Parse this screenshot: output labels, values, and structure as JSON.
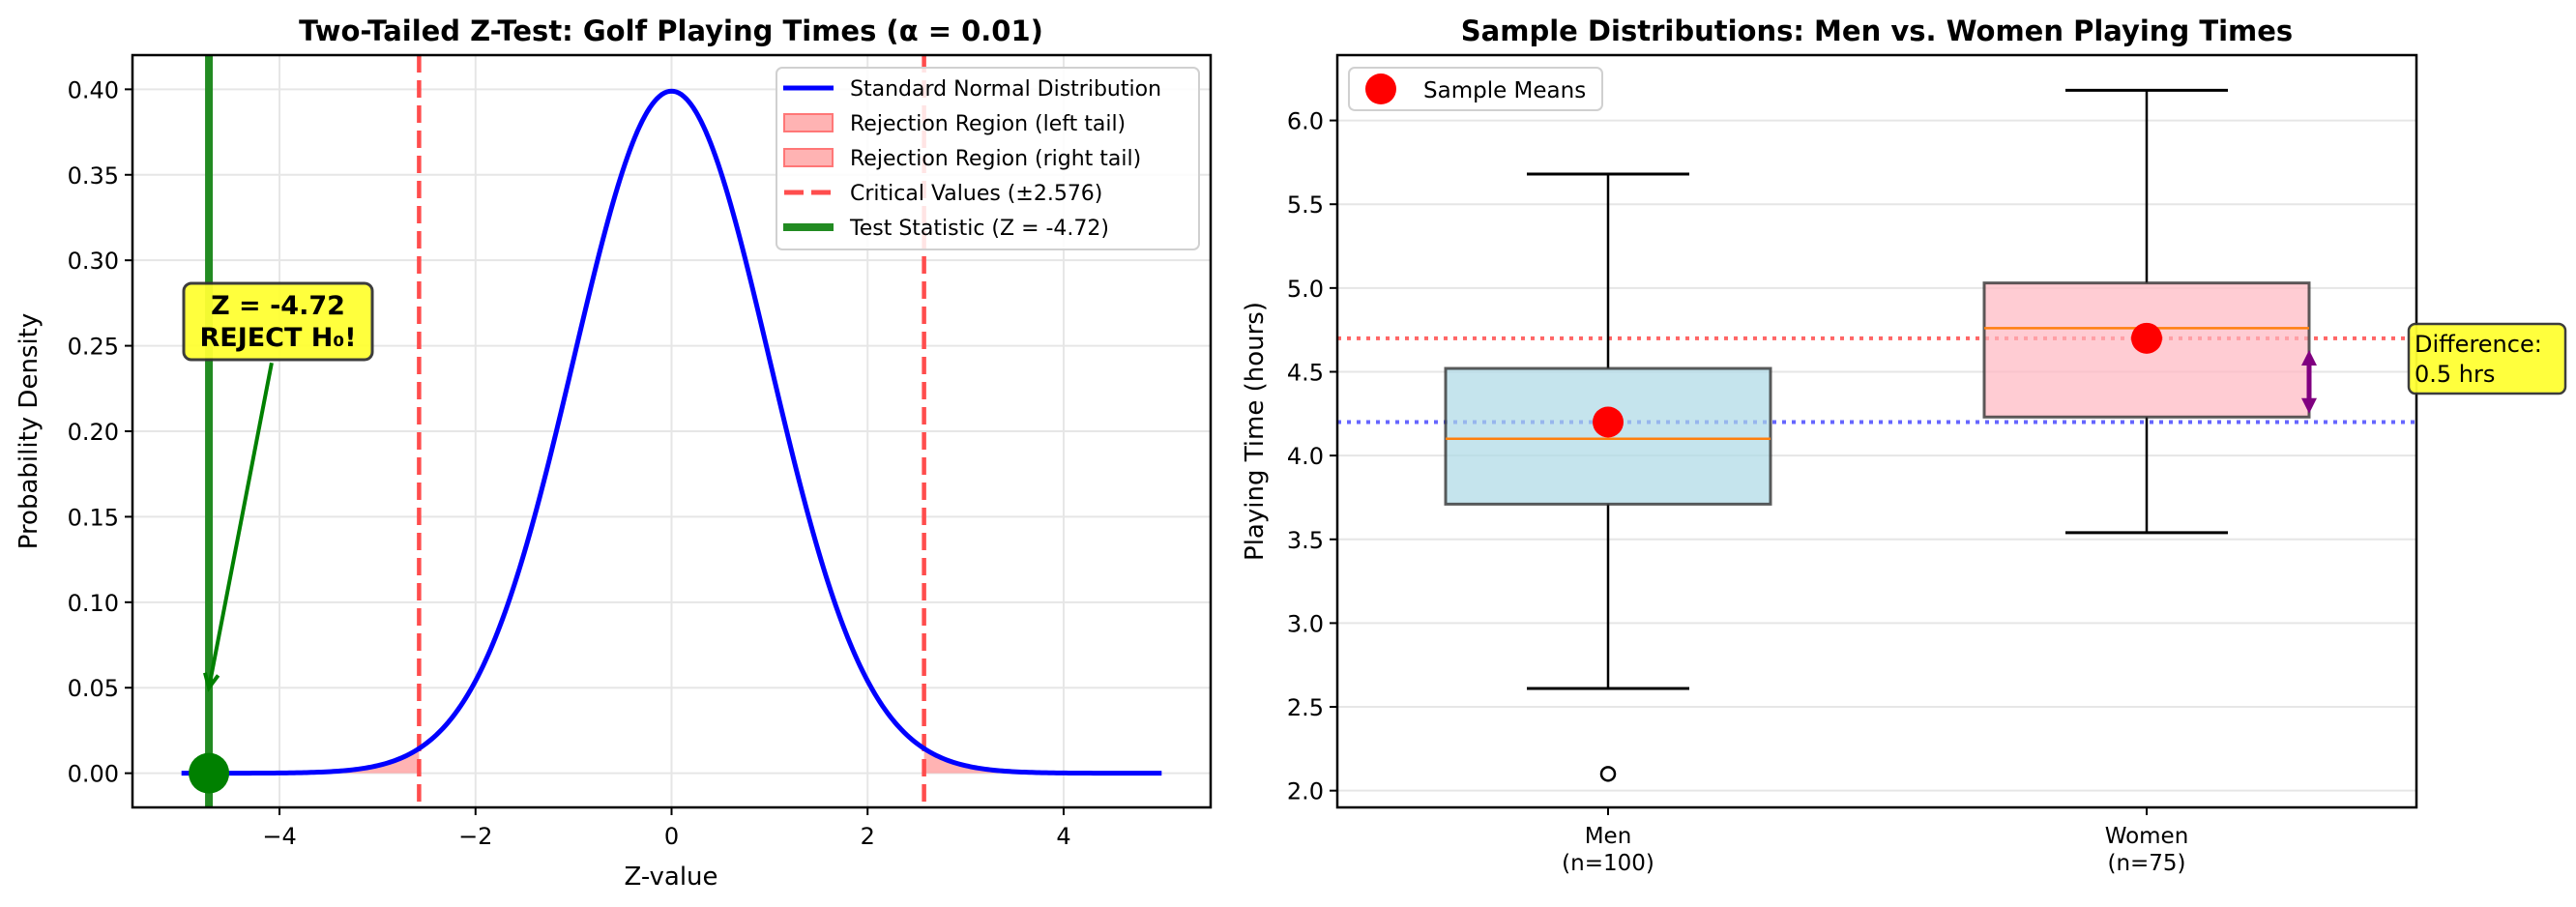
{
  "chart_data": [
    {
      "type": "line",
      "title": "Two-Tailed Z-Test: Golf Playing Times (α = 0.01)",
      "xlabel": "Z-value",
      "ylabel": "Probability Density",
      "xlim": [
        -5.5,
        5.5
      ],
      "ylim": [
        -0.02,
        0.42
      ],
      "grid": true,
      "xticks": [
        -4,
        -2,
        0,
        2,
        4
      ],
      "xtick_labels": [
        "−4",
        "−2",
        "0",
        "2",
        "4"
      ],
      "yticks": [
        0.0,
        0.05,
        0.1,
        0.15,
        0.2,
        0.25,
        0.3,
        0.35,
        0.4
      ],
      "ytick_labels": [
        "0.00",
        "0.05",
        "0.10",
        "0.15",
        "0.20",
        "0.25",
        "0.30",
        "0.35",
        "0.40"
      ],
      "curve": {
        "name": "Standard Normal Distribution",
        "function": "standard_normal_pdf",
        "x_range": [
          -5,
          5
        ],
        "color": "#0000ff"
      },
      "critical_value": 2.576,
      "test_statistic": -4.72,
      "legend": {
        "placement": "top-right",
        "entries": [
          {
            "label": "Standard Normal Distribution",
            "kind": "line",
            "color": "#0000ff"
          },
          {
            "label": "Rejection Region (left tail)",
            "kind": "patch",
            "color": "#ff9999"
          },
          {
            "label": "Rejection Region (right tail)",
            "kind": "patch",
            "color": "#ff9999"
          },
          {
            "label": "Critical Values (±2.576)",
            "kind": "dashed",
            "color": "#ff4d4d"
          },
          {
            "label": "Test Statistic (Z = -4.72)",
            "kind": "line",
            "color": "#228b22"
          }
        ]
      },
      "annotation": {
        "line1": "Z = -4.72",
        "line2": "REJECT H₀!",
        "text_pos": [
          -4.0,
          0.265
        ],
        "arrow_from": [
          -4.08,
          0.24
        ],
        "arrow_to": [
          -4.72,
          0.05
        ],
        "box_color": "#ffff33",
        "arrow_color": "#008000"
      },
      "test_point": {
        "x": -4.72,
        "y": 0.0,
        "color": "#008000"
      }
    },
    {
      "type": "box",
      "title": "Sample Distributions: Men vs. Women Playing Times",
      "xlabel": "",
      "ylabel": "Playing Time (hours)",
      "ylim": [
        1.9,
        6.39
      ],
      "grid": true,
      "yticks": [
        2.0,
        2.5,
        3.0,
        3.5,
        4.0,
        4.5,
        5.0,
        5.5,
        6.0
      ],
      "ytick_labels": [
        "2.0",
        "2.5",
        "3.0",
        "3.5",
        "4.0",
        "4.5",
        "5.0",
        "5.5",
        "6.0"
      ],
      "categories": [
        "Men\n(n=100)",
        "Women\n(n=75)"
      ],
      "category_lines": [
        [
          "Men",
          "(n=100)"
        ],
        [
          "Women",
          "(n=75)"
        ]
      ],
      "series": [
        {
          "name": "Men",
          "n": 100,
          "whisker_low": 2.61,
          "q1": 3.71,
          "median": 4.1,
          "q3": 4.52,
          "whisker_high": 5.68,
          "mean": 4.2,
          "outliers": [
            2.1
          ],
          "fill": "#add8e6"
        },
        {
          "name": "Women",
          "n": 75,
          "whisker_low": 3.54,
          "q1": 4.23,
          "median": 4.76,
          "q3": 5.03,
          "whisker_high": 6.18,
          "mean": 4.7,
          "outliers": [],
          "fill": "#ffb6c1"
        }
      ],
      "reference_lines": [
        {
          "y": 4.7,
          "color": "#ff6666",
          "style": "dotted"
        },
        {
          "y": 4.2,
          "color": "#6666ff",
          "style": "dotted"
        }
      ],
      "difference_arrow": {
        "from": 4.25,
        "to": 4.63,
        "color": "#800080"
      },
      "annotation": {
        "line1": "Difference:",
        "line2": "0.5 hrs",
        "box_color": "#ffff33"
      },
      "legend": {
        "placement": "top-left",
        "entries": [
          {
            "label": "Sample Means",
            "kind": "marker",
            "color": "#ff0000"
          }
        ]
      }
    }
  ]
}
